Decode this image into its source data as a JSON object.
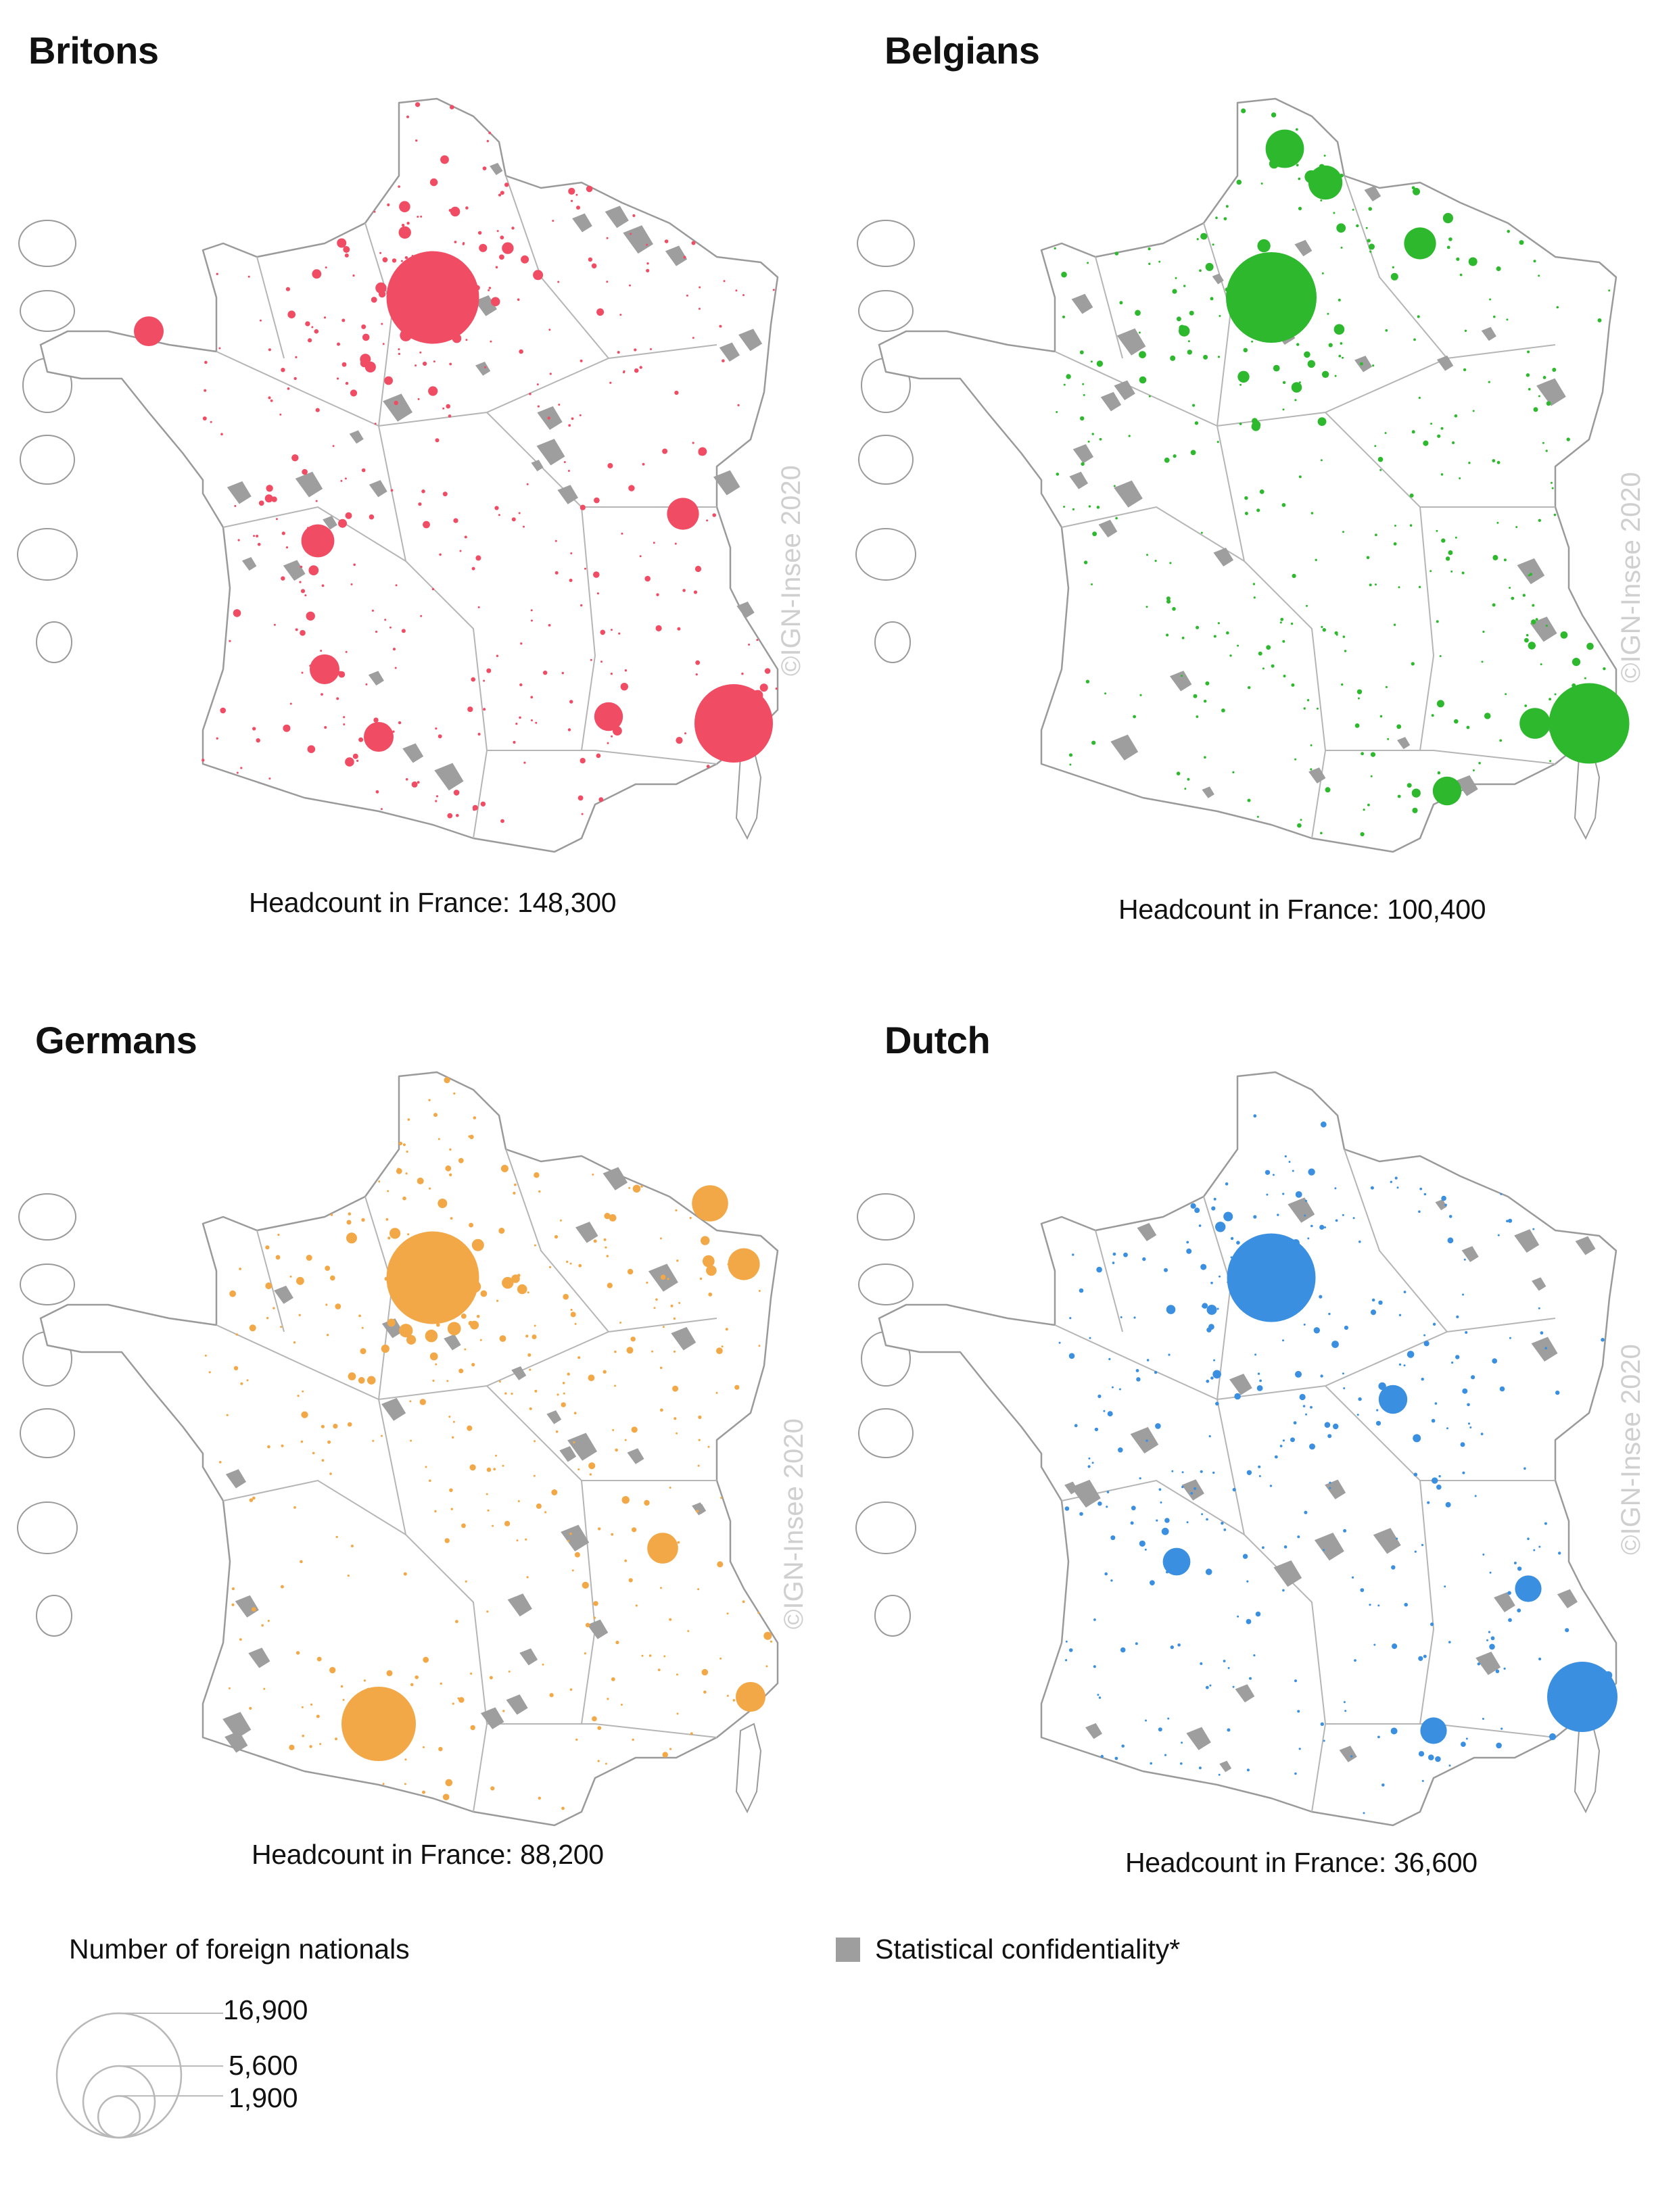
{
  "colors": {
    "britons": "#f04c64",
    "belgians": "#2db82d",
    "germans": "#f3a847",
    "dutch": "#3b8fe0",
    "confidential": "#9e9e9e",
    "border": "#9a9a9a"
  },
  "copyright": "©IGN-Insee 2020",
  "panels": [
    {
      "id": "britons",
      "title": "Britons",
      "headcount": "Headcount in France: 148,300"
    },
    {
      "id": "belgians",
      "title": "Belgians",
      "headcount": "Headcount in France: 100,400"
    },
    {
      "id": "germans",
      "title": "Germans",
      "headcount": "Headcount in France: 88,200"
    },
    {
      "id": "dutch",
      "title": "Dutch",
      "headcount": "Headcount in France: 36,600"
    }
  ],
  "legend": {
    "title": "Number of foreign nationals",
    "sizes": [
      {
        "value": 16900,
        "label": "16,900"
      },
      {
        "value": 5600,
        "label": "5,600"
      },
      {
        "value": 1900,
        "label": "1,900"
      }
    ],
    "confidentiality": "Statistical confidentiality*"
  }
}
